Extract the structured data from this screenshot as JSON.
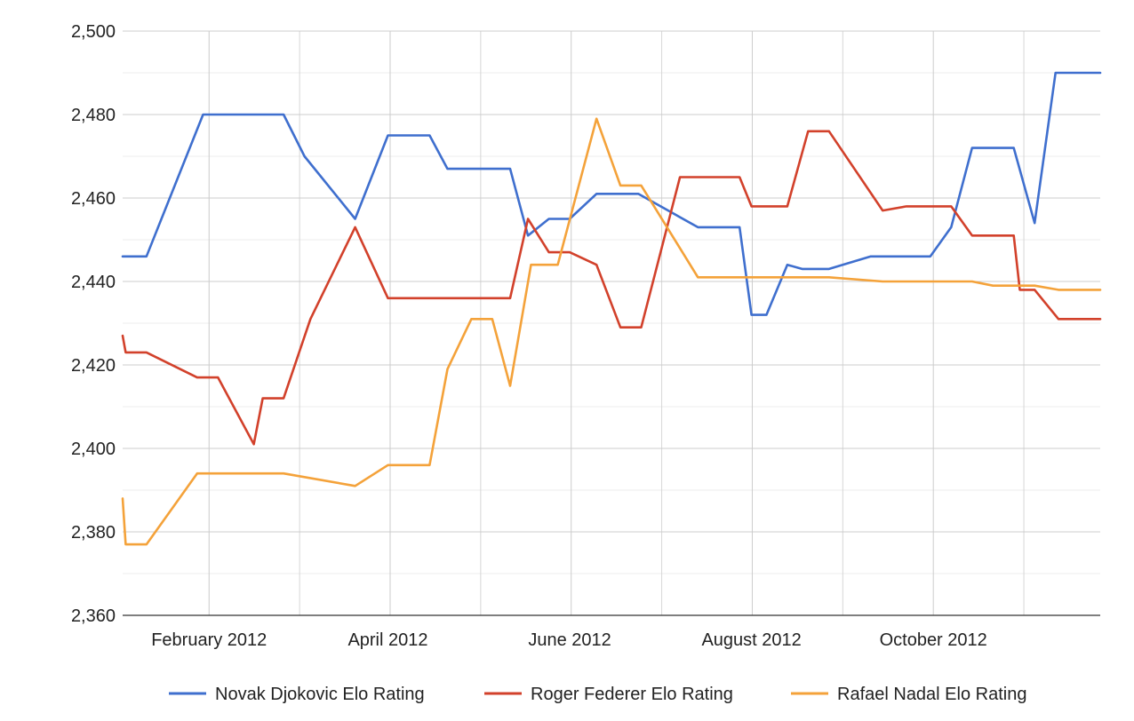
{
  "chart_data": {
    "type": "line",
    "title": "",
    "xlabel": "",
    "ylabel": "",
    "ylim": [
      2360,
      2500
    ],
    "y_ticks": [
      2360,
      2380,
      2400,
      2420,
      2440,
      2460,
      2480,
      2500
    ],
    "y_tick_labels": [
      "2,360",
      "2,380",
      "2,400",
      "2,420",
      "2,440",
      "2,460",
      "2,480",
      "2,500"
    ],
    "xlim": [
      "2012-01-03",
      "2012-11-26"
    ],
    "x_tick_dates": [
      "2012-02-01",
      "2012-04-01",
      "2012-06-01",
      "2012-08-01",
      "2012-10-01"
    ],
    "x_tick_labels": [
      "February 2012",
      "April 2012",
      "June 2012",
      "August 2012",
      "October 2012"
    ],
    "grid": true,
    "legend_position": "bottom",
    "series": [
      {
        "name": "Novak Djokovic Elo Rating",
        "color": "#3f6fce",
        "points": [
          [
            "2012-01-03",
            2446
          ],
          [
            "2012-01-11",
            2446
          ],
          [
            "2012-01-30",
            2480
          ],
          [
            "2012-02-05",
            2480
          ],
          [
            "2012-02-12",
            2480
          ],
          [
            "2012-02-19",
            2480
          ],
          [
            "2012-02-26",
            2480
          ],
          [
            "2012-03-04",
            2470
          ],
          [
            "2012-03-21",
            2455
          ],
          [
            "2012-04-01",
            2475
          ],
          [
            "2012-04-08",
            2475
          ],
          [
            "2012-04-15",
            2475
          ],
          [
            "2012-04-21",
            2467
          ],
          [
            "2012-05-05",
            2467
          ],
          [
            "2012-05-12",
            2467
          ],
          [
            "2012-05-18",
            2451
          ],
          [
            "2012-05-25",
            2455
          ],
          [
            "2012-06-01",
            2455
          ],
          [
            "2012-06-10",
            2461
          ],
          [
            "2012-06-24",
            2461
          ],
          [
            "2012-07-14",
            2453
          ],
          [
            "2012-07-28",
            2453
          ],
          [
            "2012-08-01",
            2432
          ],
          [
            "2012-08-06",
            2432
          ],
          [
            "2012-08-13",
            2444
          ],
          [
            "2012-08-18",
            2443
          ],
          [
            "2012-08-27",
            2443
          ],
          [
            "2012-09-10",
            2446
          ],
          [
            "2012-09-30",
            2446
          ],
          [
            "2012-10-07",
            2453
          ],
          [
            "2012-10-14",
            2472
          ],
          [
            "2012-10-21",
            2472
          ],
          [
            "2012-10-28",
            2472
          ],
          [
            "2012-11-04",
            2454
          ],
          [
            "2012-11-11",
            2490
          ],
          [
            "2012-11-26",
            2490
          ]
        ]
      },
      {
        "name": "Roger Federer Elo Rating",
        "color": "#d2412b",
        "points": [
          [
            "2012-01-03",
            2427
          ],
          [
            "2012-01-04",
            2423
          ],
          [
            "2012-01-11",
            2423
          ],
          [
            "2012-01-28",
            2417
          ],
          [
            "2012-02-04",
            2417
          ],
          [
            "2012-02-16",
            2401
          ],
          [
            "2012-02-19",
            2412
          ],
          [
            "2012-02-26",
            2412
          ],
          [
            "2012-03-06",
            2431
          ],
          [
            "2012-03-21",
            2453
          ],
          [
            "2012-04-01",
            2436
          ],
          [
            "2012-04-15",
            2436
          ],
          [
            "2012-04-21",
            2436
          ],
          [
            "2012-05-12",
            2436
          ],
          [
            "2012-05-18",
            2455
          ],
          [
            "2012-05-25",
            2447
          ],
          [
            "2012-06-01",
            2447
          ],
          [
            "2012-06-10",
            2444
          ],
          [
            "2012-06-18",
            2429
          ],
          [
            "2012-06-25",
            2429
          ],
          [
            "2012-07-08",
            2465
          ],
          [
            "2012-07-21",
            2465
          ],
          [
            "2012-07-28",
            2465
          ],
          [
            "2012-08-01",
            2458
          ],
          [
            "2012-08-13",
            2458
          ],
          [
            "2012-08-20",
            2476
          ],
          [
            "2012-08-27",
            2476
          ],
          [
            "2012-09-14",
            2457
          ],
          [
            "2012-09-22",
            2458
          ],
          [
            "2012-10-07",
            2458
          ],
          [
            "2012-10-14",
            2451
          ],
          [
            "2012-10-28",
            2451
          ],
          [
            "2012-10-30",
            2438
          ],
          [
            "2012-11-04",
            2438
          ],
          [
            "2012-11-12",
            2431
          ],
          [
            "2012-11-26",
            2431
          ]
        ]
      },
      {
        "name": "Rafael Nadal Elo Rating",
        "color": "#f4a23a",
        "points": [
          [
            "2012-01-03",
            2388
          ],
          [
            "2012-01-04",
            2377
          ],
          [
            "2012-01-11",
            2377
          ],
          [
            "2012-01-28",
            2394
          ],
          [
            "2012-02-04",
            2394
          ],
          [
            "2012-02-26",
            2394
          ],
          [
            "2012-03-21",
            2391
          ],
          [
            "2012-04-01",
            2396
          ],
          [
            "2012-04-15",
            2396
          ],
          [
            "2012-04-21",
            2419
          ],
          [
            "2012-04-29",
            2431
          ],
          [
            "2012-05-06",
            2431
          ],
          [
            "2012-05-12",
            2415
          ],
          [
            "2012-05-19",
            2444
          ],
          [
            "2012-05-28",
            2444
          ],
          [
            "2012-06-10",
            2479
          ],
          [
            "2012-06-18",
            2463
          ],
          [
            "2012-06-25",
            2463
          ],
          [
            "2012-07-14",
            2441
          ],
          [
            "2012-07-28",
            2441
          ],
          [
            "2012-08-01",
            2441
          ],
          [
            "2012-08-13",
            2441
          ],
          [
            "2012-08-27",
            2441
          ],
          [
            "2012-09-14",
            2440
          ],
          [
            "2012-09-30",
            2440
          ],
          [
            "2012-10-14",
            2440
          ],
          [
            "2012-10-21",
            2439
          ],
          [
            "2012-10-30",
            2439
          ],
          [
            "2012-11-04",
            2439
          ],
          [
            "2012-11-12",
            2438
          ],
          [
            "2012-11-26",
            2438
          ]
        ]
      }
    ]
  }
}
